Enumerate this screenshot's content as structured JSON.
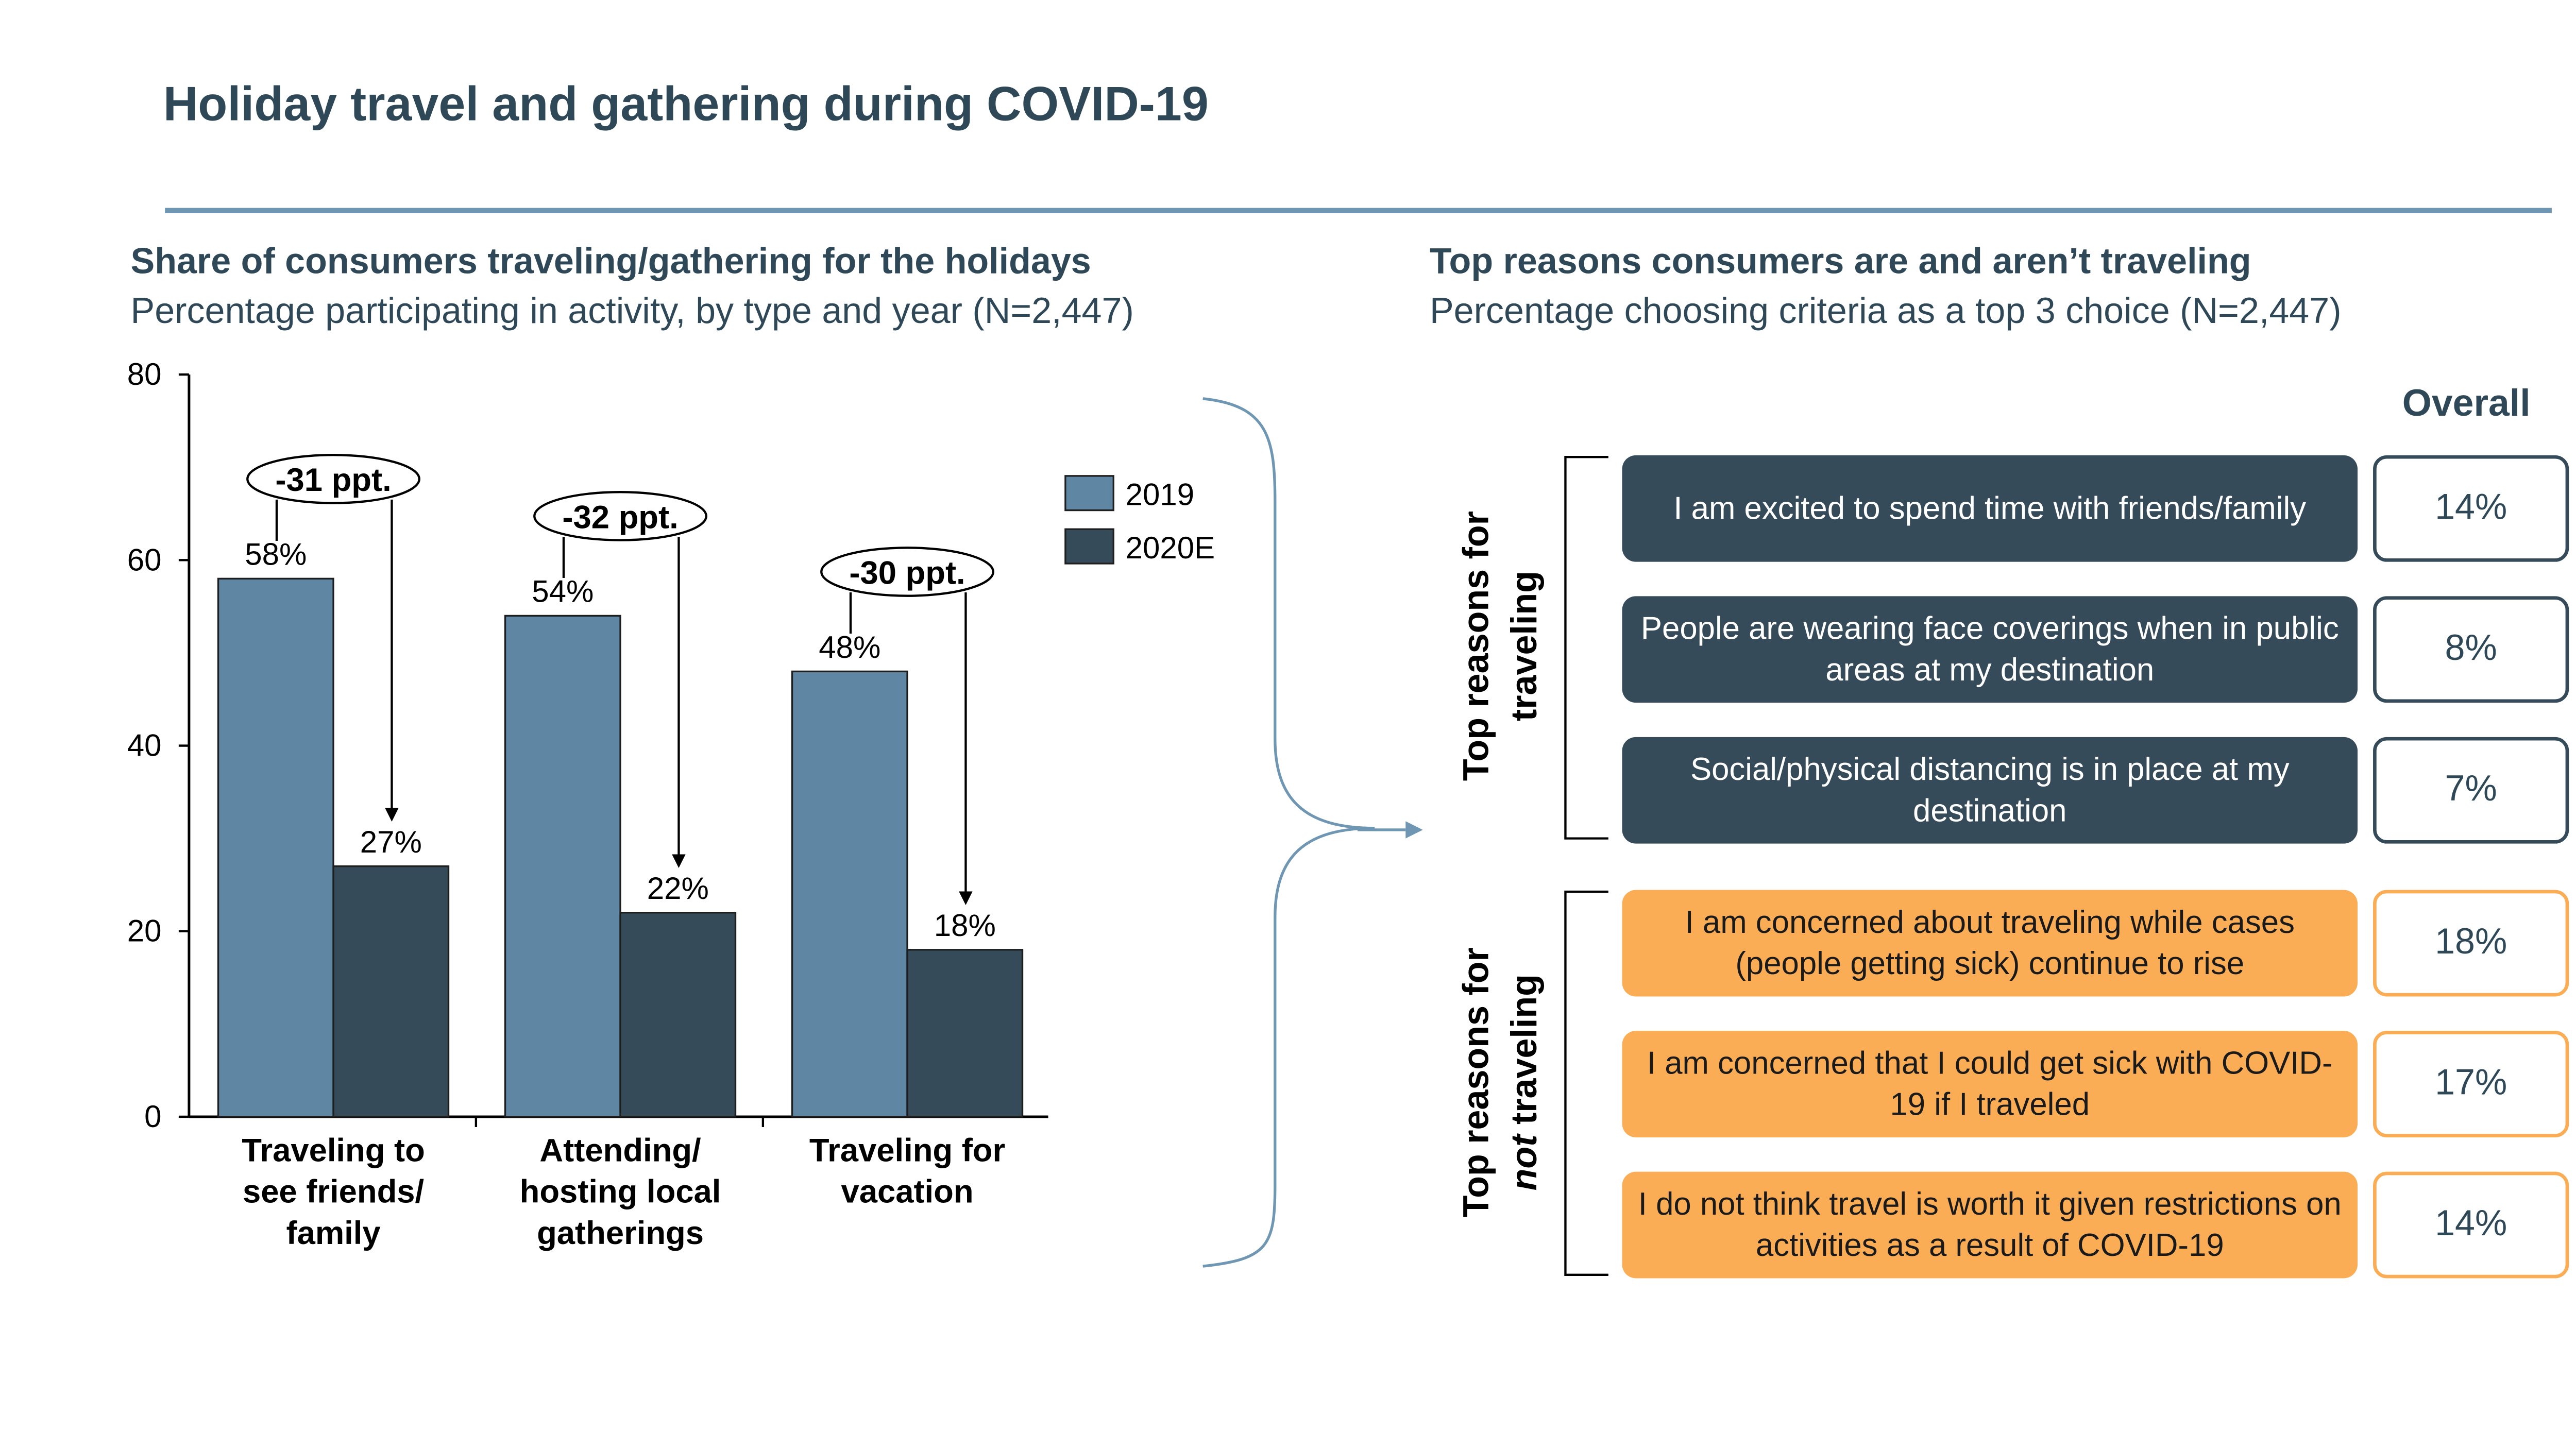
{
  "title": "Holiday travel and gathering during COVID-19",
  "left": {
    "heading": "Share of consumers traveling/gathering for the holidays",
    "subheading": "Percentage participating in activity, by type and year (N=2,447)"
  },
  "right": {
    "heading": "Top reasons consumers are and aren’t traveling",
    "subheading": "Percentage choosing criteria as a top 3 choice (N=2,447)",
    "overall_label": "Overall",
    "group_traveling": {
      "line1": "Top reasons for",
      "line2": "traveling"
    },
    "group_not_traveling": {
      "line1": "Top reasons for",
      "line2_em": "not",
      "line2_rest": " traveling"
    },
    "traveling": [
      {
        "text": "I am excited to spend time with friends/family",
        "pct": "14%"
      },
      {
        "text": "People are wearing face coverings when in public areas at my destination",
        "pct": "8%"
      },
      {
        "text": "Social/physical distancing is in place at my destination",
        "pct": "7%"
      }
    ],
    "not_traveling": [
      {
        "text": "I am concerned about traveling while cases (people getting sick) continue to rise",
        "pct": "18%"
      },
      {
        "text": "I am concerned that I could get sick with COVID-19 if I traveled",
        "pct": "17%"
      },
      {
        "text": "I do not think travel is worth it given restrictions on activities as a result of COVID-19",
        "pct": "14%"
      }
    ],
    "colors": {
      "dark": "#364b5a",
      "orange": "#fbad55"
    }
  },
  "chart_data": {
    "type": "bar",
    "categories": [
      [
        "Traveling to",
        "see friends/",
        "family"
      ],
      [
        "Attending/",
        "hosting local",
        "gatherings"
      ],
      [
        "Traveling for",
        "vacation"
      ]
    ],
    "series": [
      {
        "name": "2019",
        "values": [
          58,
          54,
          48
        ],
        "labels": [
          "58%",
          "54%",
          "48%"
        ],
        "color": "#5f87a3"
      },
      {
        "name": "2020E",
        "values": [
          27,
          22,
          18
        ],
        "labels": [
          "27%",
          "22%",
          "18%"
        ],
        "color": "#364b5a"
      }
    ],
    "annotations": [
      "-31 ppt.",
      "-32 ppt.",
      "-30 ppt."
    ],
    "yticks": [
      0,
      20,
      40,
      60,
      80
    ],
    "ylim": [
      0,
      80
    ],
    "legend_placement": "top-right",
    "grid": false
  }
}
